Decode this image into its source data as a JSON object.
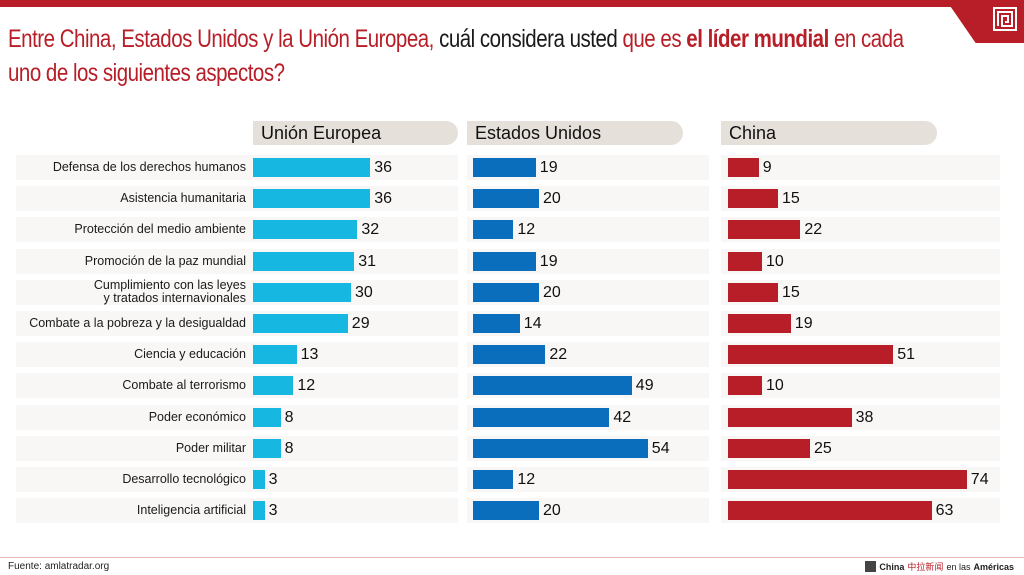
{
  "title": {
    "part1": "Entre China, Estados Unidos y la Unión Europea,",
    "part2": " cuál considera usted ",
    "part3": "que es ",
    "part4": "el líder mundial",
    "part5": " en cada uno de los siguientes aspectos?"
  },
  "colors": {
    "eu": "#16b8e1",
    "us": "#0a6ebd",
    "china": "#b71e27",
    "accent": "#b71e27"
  },
  "footer": {
    "source": "Fuente: amlatradar.org",
    "brand_prefix": "China",
    "brand_chinese": "中拉新闻",
    "brand_mid": " en las ",
    "brand_suffix": "Américas"
  },
  "chart_data": {
    "type": "bar",
    "title": "Entre China, Estados Unidos y la Unión Europea, cuál considera usted que es el líder mundial en cada uno de los siguientes aspectos?",
    "orientation": "horizontal",
    "categories": [
      "Defensa de los derechos humanos",
      "Asistencia humanitaria",
      "Protección del medio ambiente",
      "Promoción de la paz mundial",
      "Cumplimiento con las leyes y tratados internavionales",
      "Combate a la pobreza y la desigualdad",
      "Ciencia y educación",
      "Combate al terrorismo",
      "Poder económico",
      "Poder militar",
      "Desarrollo tecnológico",
      "Inteligencia artificial"
    ],
    "series": [
      {
        "name": "Unión Europea",
        "key": "eu",
        "values": [
          36,
          36,
          32,
          31,
          30,
          29,
          13,
          12,
          8,
          8,
          3,
          3
        ]
      },
      {
        "name": "Estados Unidos",
        "key": "us",
        "values": [
          19,
          20,
          12,
          19,
          20,
          14,
          22,
          49,
          42,
          54,
          12,
          20
        ]
      },
      {
        "name": "China",
        "key": "cn",
        "values": [
          9,
          15,
          22,
          10,
          15,
          19,
          51,
          10,
          38,
          25,
          74,
          63
        ]
      }
    ],
    "xlabel": "",
    "ylabel": "",
    "legend": "top (panel headers)",
    "grid": false,
    "source": "Fuente: amlatradar.org"
  }
}
